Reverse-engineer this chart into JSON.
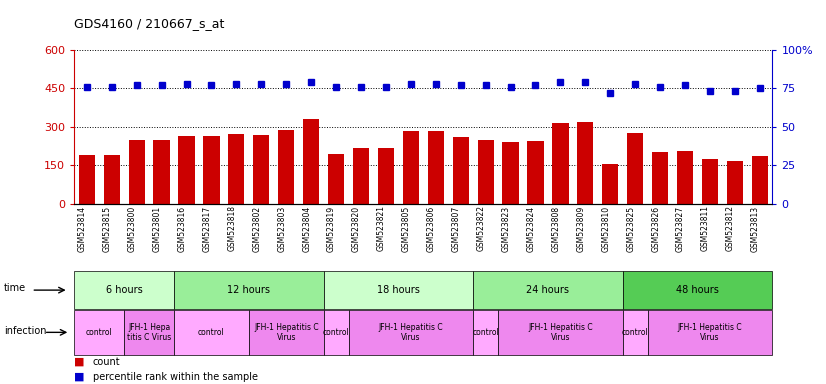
{
  "title": "GDS4160 / 210667_s_at",
  "samples": [
    "GSM523814",
    "GSM523815",
    "GSM523800",
    "GSM523801",
    "GSM523816",
    "GSM523817",
    "GSM523818",
    "GSM523802",
    "GSM523803",
    "GSM523804",
    "GSM523819",
    "GSM523820",
    "GSM523821",
    "GSM523805",
    "GSM523806",
    "GSM523807",
    "GSM523822",
    "GSM523823",
    "GSM523824",
    "GSM523808",
    "GSM523809",
    "GSM523810",
    "GSM523825",
    "GSM523826",
    "GSM523827",
    "GSM523811",
    "GSM523812",
    "GSM523813"
  ],
  "counts": [
    190,
    190,
    250,
    250,
    265,
    262,
    270,
    268,
    287,
    330,
    195,
    215,
    215,
    285,
    285,
    260,
    250,
    240,
    245,
    315,
    320,
    155,
    275,
    200,
    205,
    175,
    165,
    185
  ],
  "percentile": [
    76,
    76,
    77,
    77,
    78,
    77,
    78,
    78,
    78,
    79,
    76,
    76,
    76,
    78,
    78,
    77,
    77,
    76,
    77,
    79,
    79,
    72,
    78,
    76,
    77,
    73,
    73,
    75
  ],
  "bar_color": "#cc0000",
  "dot_color": "#0000cc",
  "left_ylim": [
    0,
    600
  ],
  "right_ylim": [
    0,
    100
  ],
  "left_yticks": [
    0,
    150,
    300,
    450,
    600
  ],
  "right_yticks": [
    0,
    25,
    50,
    75,
    100
  ],
  "time_groups": [
    {
      "label": "6 hours",
      "start": 0,
      "end": 4,
      "color": "#ccffcc"
    },
    {
      "label": "12 hours",
      "start": 4,
      "end": 10,
      "color": "#99ee99"
    },
    {
      "label": "18 hours",
      "start": 10,
      "end": 16,
      "color": "#ccffcc"
    },
    {
      "label": "24 hours",
      "start": 16,
      "end": 22,
      "color": "#99ee99"
    },
    {
      "label": "48 hours",
      "start": 22,
      "end": 28,
      "color": "#55cc55"
    }
  ],
  "infection_groups": [
    {
      "label": "control",
      "start": 0,
      "end": 2,
      "color": "#ffaaff"
    },
    {
      "label": "JFH-1 Hepa\ntitis C Virus",
      "start": 2,
      "end": 4,
      "color": "#ee88ee"
    },
    {
      "label": "control",
      "start": 4,
      "end": 7,
      "color": "#ffaaff"
    },
    {
      "label": "JFH-1 Hepatitis C\nVirus",
      "start": 7,
      "end": 10,
      "color": "#ee88ee"
    },
    {
      "label": "control",
      "start": 10,
      "end": 11,
      "color": "#ffaaff"
    },
    {
      "label": "JFH-1 Hepatitis C\nVirus",
      "start": 11,
      "end": 16,
      "color": "#ee88ee"
    },
    {
      "label": "control",
      "start": 16,
      "end": 17,
      "color": "#ffaaff"
    },
    {
      "label": "JFH-1 Hepatitis C\nVirus",
      "start": 17,
      "end": 22,
      "color": "#ee88ee"
    },
    {
      "label": "control",
      "start": 22,
      "end": 23,
      "color": "#ffaaff"
    },
    {
      "label": "JFH-1 Hepatitis C\nVirus",
      "start": 23,
      "end": 28,
      "color": "#ee88ee"
    }
  ],
  "bg_color": "#ffffff",
  "left_axis_color": "#cc0000",
  "right_axis_color": "#0000cc"
}
